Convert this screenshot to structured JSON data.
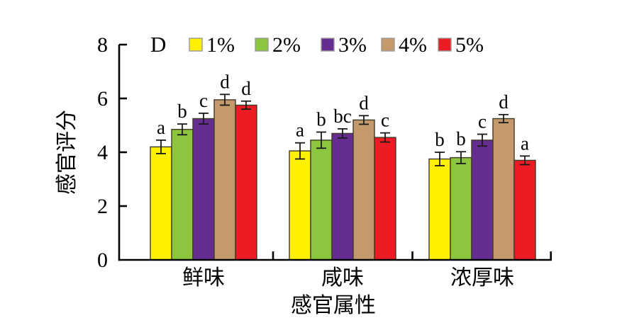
{
  "figure": {
    "panel_label": "D"
  },
  "chart_data": {
    "type": "bar",
    "title": "",
    "panel_label": "D",
    "xlabel": "感官属性",
    "ylabel": "感官评分",
    "ylim": [
      0,
      8
    ],
    "yticks": [
      0,
      2,
      4,
      6,
      8
    ],
    "grid": false,
    "legend_position": "top",
    "categories": [
      "鲜味",
      "咸味",
      "浓厚味"
    ],
    "series": [
      {
        "name": "1%",
        "color": "#FFF100",
        "values": [
          4.2,
          4.05,
          3.75
        ],
        "errors": [
          0.25,
          0.3,
          0.25
        ],
        "letters": [
          "a",
          "a",
          "b"
        ]
      },
      {
        "name": "2%",
        "color": "#8CC63E",
        "values": [
          4.85,
          4.45,
          3.8
        ],
        "errors": [
          0.2,
          0.3,
          0.22
        ],
        "letters": [
          "b",
          "b",
          "b"
        ]
      },
      {
        "name": "3%",
        "color": "#662D91",
        "values": [
          5.25,
          4.7,
          4.45
        ],
        "errors": [
          0.2,
          0.17,
          0.22
        ],
        "letters": [
          "c",
          "bc",
          "c"
        ]
      },
      {
        "name": "4%",
        "color": "#C49A6C",
        "values": [
          5.95,
          5.2,
          5.25
        ],
        "errors": [
          0.2,
          0.16,
          0.15
        ],
        "letters": [
          "d",
          "d",
          "d"
        ]
      },
      {
        "name": "5%",
        "color": "#ED1C24",
        "values": [
          5.75,
          4.55,
          3.7
        ],
        "errors": [
          0.15,
          0.17,
          0.16
        ],
        "letters": [
          "d",
          "c",
          "a"
        ]
      }
    ],
    "style": {
      "bar_edge_color": "#3f3a28",
      "error_bar_color": "#1a1a1a",
      "axis_color": "#000000",
      "legend_swatch_border": "#9a9a9a"
    }
  }
}
